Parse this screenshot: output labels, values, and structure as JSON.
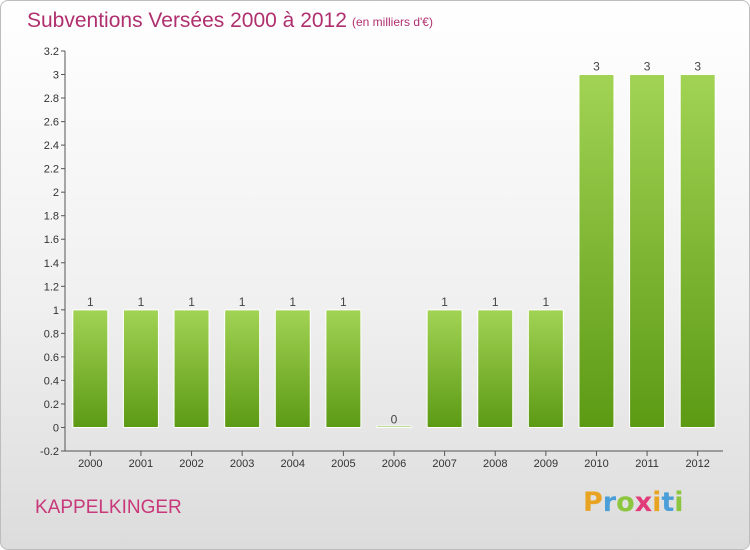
{
  "header": {
    "title": "Subventions Versées 2000 à 2012",
    "subtitle": "(en milliers d'€)"
  },
  "commune": "KAPPELKINGER",
  "logo": {
    "letters": [
      "P",
      "r",
      "o",
      "x",
      "i",
      "t",
      "i"
    ],
    "colors": [
      "#e8a322",
      "#4a9fd8",
      "#8cc63f",
      "#e23b7a",
      "#e8a322",
      "#4a9fd8",
      "#8cc63f"
    ]
  },
  "colors": {
    "bar_light": "#a2d354",
    "bar_dark": "#5c9a14",
    "axis": "#555555",
    "grid": "#dddddd"
  },
  "chart_data": {
    "type": "bar",
    "categories": [
      "2000",
      "2001",
      "2002",
      "2003",
      "2004",
      "2005",
      "2006",
      "2007",
      "2008",
      "2009",
      "2010",
      "2011",
      "2012"
    ],
    "values": [
      1,
      1,
      1,
      1,
      1,
      1,
      0,
      1,
      1,
      1,
      3,
      3,
      3
    ],
    "value_labels": [
      "1",
      "1",
      "1",
      "1",
      "1",
      "1",
      "0",
      "1",
      "1",
      "1",
      "3",
      "3",
      "3"
    ],
    "title": "Subventions Versées 2000 à 2012",
    "ylim": [
      -0.2,
      3.2
    ],
    "yticks": [
      -0.2,
      0,
      0.2,
      0.4,
      0.6,
      0.8,
      1,
      1.2,
      1.4,
      1.6,
      1.8,
      2,
      2.2,
      2.4,
      2.6,
      2.8,
      3,
      3.2
    ],
    "ytick_labels": [
      "-0.2",
      "0",
      "0.2",
      "0.4",
      "0.6",
      "0.8",
      "1",
      "1.2",
      "1.4",
      "1.6",
      "1.8",
      "2",
      "2.2",
      "2.4",
      "2.6",
      "2.8",
      "3",
      "3.2"
    ],
    "grid": false
  }
}
